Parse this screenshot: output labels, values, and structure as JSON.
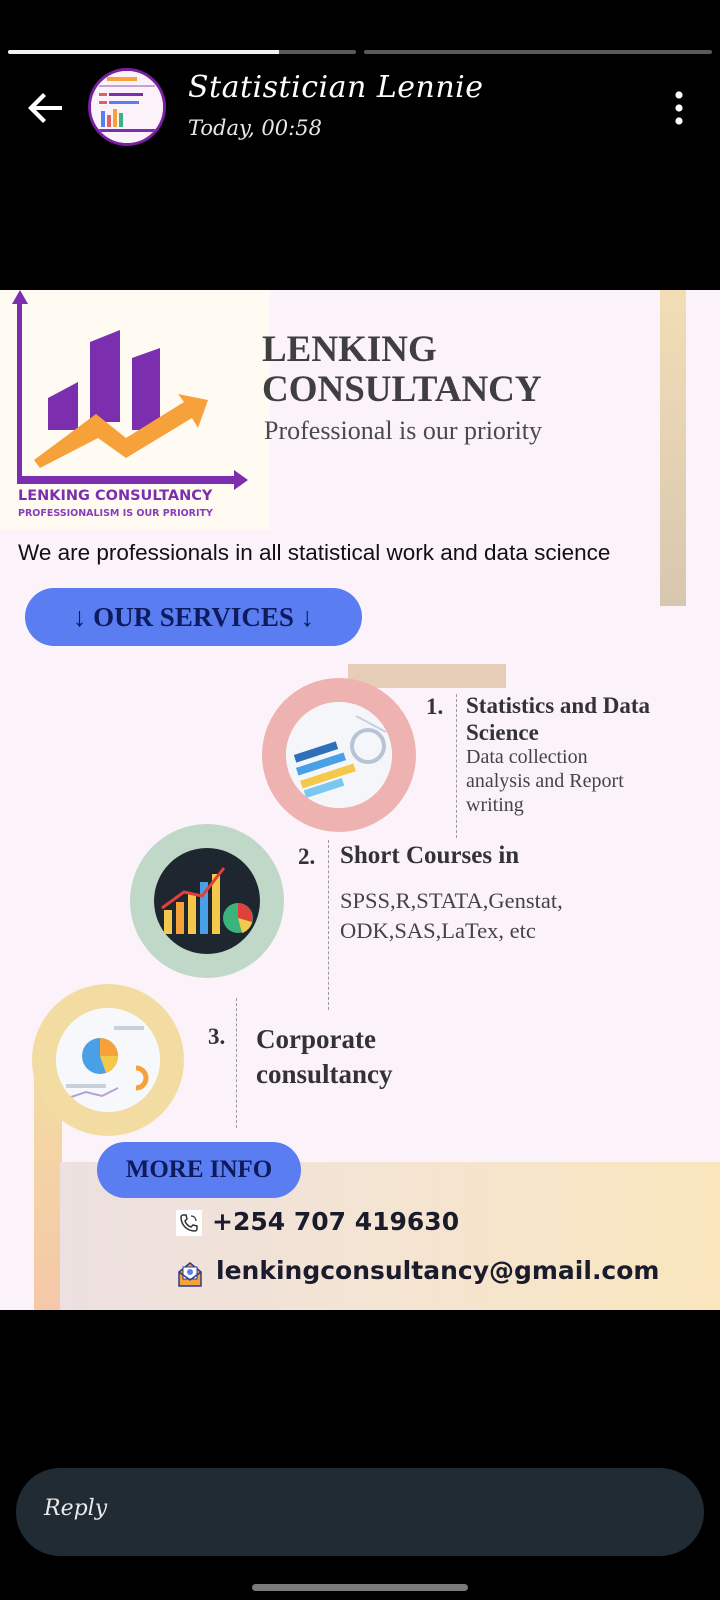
{
  "status": {
    "segments": [
      {
        "progress": 0.78
      },
      {
        "progress": 0.0
      }
    ]
  },
  "header": {
    "contact_name": "Statistician Lennie",
    "timestamp": "Today, 00:58",
    "back_icon": "arrow-left-icon",
    "menu_icon": "more-vertical-icon"
  },
  "poster": {
    "logo_text": "LENKING CONSULTANCY",
    "logo_subtext": "PROFESSIONALISM IS OUR PRIORITY",
    "title_line1": "LENKING",
    "title_line2": "CONSULTANCY",
    "tagline": "Professional is our priority",
    "intro": "We are professionals in all statistical work and data science",
    "services_button": "↓ OUR SERVICES ↓",
    "services": [
      {
        "number": "1.",
        "title_line1": "Statistics and Data",
        "title_line2": "Science",
        "desc_line1": "Data collection",
        "desc_line2": "analysis and Report",
        "desc_line3": "writing"
      },
      {
        "number": "2.",
        "title_line1": "Short Courses in",
        "desc_line1": "SPSS,R,STATA,Genstat,",
        "desc_line2": "ODK,SAS,LaTex, etc"
      },
      {
        "number": "3.",
        "title_line1": "Corporate",
        "title_line2": "consultancy"
      }
    ],
    "more_info": "MORE INFO",
    "phone": "+254 707 419630",
    "email": "lenkingconsultancy@gmail.com"
  },
  "reply": {
    "placeholder": "Reply"
  },
  "colors": {
    "accent_blue": "#5a7ef2",
    "brand_purple": "#7b2fae",
    "arrow_orange": "#f6a13a"
  }
}
